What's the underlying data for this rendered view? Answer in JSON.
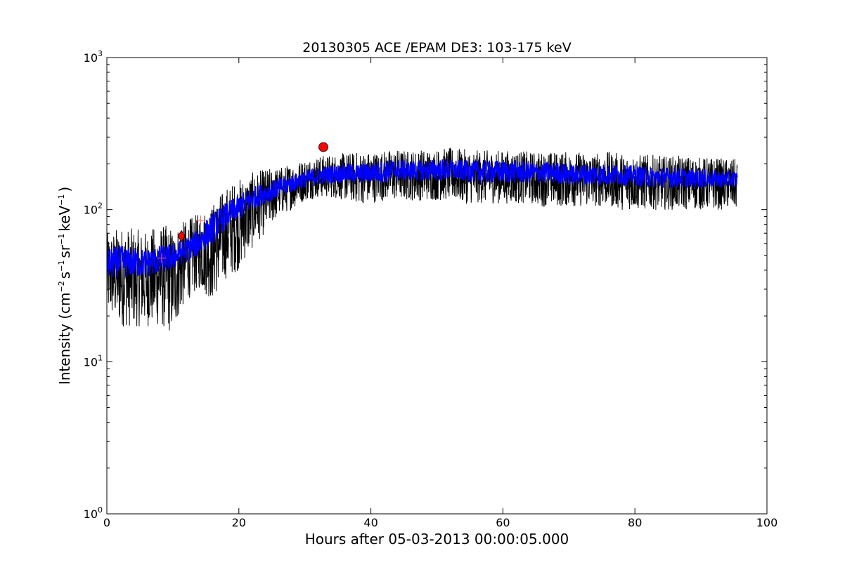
{
  "chart_data": {
    "type": "line",
    "title": "20130305 ACE /EPAM DE3: 103-175 keV",
    "xlabel": "Hours after 05-03-2013 00:00:05.000",
    "ylabel": {
      "prefix": "Intensity (cm",
      "sup1": "−2",
      "mid1": "s",
      "sup2": "−1",
      "mid2": "sr",
      "sup3": "−1",
      "mid3": "keV",
      "sup4": "−1",
      "suffix": ")"
    },
    "xlim": [
      0,
      100
    ],
    "ylim": [
      1,
      1000
    ],
    "yscale": "log",
    "grid": false,
    "x_ticks": [
      {
        "value": 0,
        "label": "0"
      },
      {
        "value": 20,
        "label": "20"
      },
      {
        "value": 40,
        "label": "40"
      },
      {
        "value": 60,
        "label": "60"
      },
      {
        "value": 80,
        "label": "80"
      },
      {
        "value": 100,
        "label": "100"
      }
    ],
    "y_ticks": [
      {
        "value": 1,
        "base": "10",
        "exp": "0"
      },
      {
        "value": 10,
        "base": "10",
        "exp": "1"
      },
      {
        "value": 100,
        "base": "10",
        "exp": "2"
      },
      {
        "value": 1000,
        "base": "10",
        "exp": "3"
      }
    ],
    "series": [
      {
        "color": "#000000",
        "style": "noisy-envelope",
        "x": [
          0,
          2,
          4,
          6,
          8,
          10,
          12,
          14,
          16,
          18,
          20,
          22,
          24,
          26,
          28,
          30,
          32,
          34,
          36,
          38,
          40,
          42,
          44,
          46,
          48,
          50,
          52,
          54,
          56,
          58,
          60,
          62,
          64,
          66,
          68,
          70,
          72,
          74,
          76,
          78,
          80,
          82,
          84,
          86,
          88,
          90,
          92,
          94,
          95.5
        ],
        "y_max": [
          70,
          78,
          75,
          72,
          80,
          78,
          85,
          95,
          110,
          140,
          160,
          175,
          185,
          190,
          200,
          215,
          225,
          230,
          235,
          240,
          240,
          245,
          250,
          245,
          250,
          250,
          255,
          250,
          245,
          245,
          245,
          245,
          240,
          240,
          240,
          240,
          240,
          235,
          240,
          235,
          230,
          230,
          225,
          225,
          225,
          220,
          220,
          215,
          215
        ],
        "y_min": [
          20,
          17,
          17,
          17,
          17,
          15,
          25,
          30,
          25,
          35,
          40,
          55,
          70,
          90,
          100,
          115,
          120,
          120,
          115,
          110,
          110,
          115,
          115,
          115,
          115,
          115,
          115,
          110,
          110,
          110,
          110,
          110,
          110,
          105,
          105,
          105,
          105,
          105,
          105,
          100,
          100,
          100,
          100,
          100,
          100,
          100,
          100,
          100,
          100
        ]
      },
      {
        "color": "#0000ff",
        "style": "noisy-envelope",
        "x": [
          0,
          2,
          4,
          6,
          8,
          10,
          12,
          14,
          16,
          18,
          20,
          22,
          24,
          26,
          28,
          30,
          32,
          34,
          36,
          38,
          40,
          42,
          44,
          46,
          48,
          50,
          52,
          54,
          56,
          58,
          60,
          62,
          64,
          66,
          68,
          70,
          72,
          74,
          76,
          78,
          80,
          82,
          84,
          86,
          88,
          90,
          92,
          94,
          95.5
        ],
        "y_max": [
          55,
          58,
          56,
          55,
          58,
          60,
          65,
          75,
          95,
          110,
          125,
          140,
          150,
          160,
          170,
          180,
          190,
          195,
          200,
          200,
          205,
          210,
          215,
          210,
          210,
          215,
          215,
          210,
          210,
          210,
          210,
          210,
          205,
          205,
          205,
          200,
          200,
          200,
          200,
          195,
          195,
          190,
          190,
          190,
          185,
          185,
          180,
          180,
          180
        ],
        "y_min": [
          35,
          36,
          36,
          36,
          38,
          40,
          45,
          50,
          60,
          75,
          85,
          100,
          110,
          120,
          130,
          140,
          145,
          150,
          150,
          150,
          150,
          150,
          155,
          155,
          155,
          155,
          155,
          155,
          150,
          150,
          150,
          150,
          150,
          150,
          150,
          145,
          145,
          145,
          145,
          145,
          145,
          140,
          140,
          140,
          140,
          140,
          140,
          140,
          140
        ]
      }
    ],
    "markers": [
      {
        "x": 8.3,
        "y": 48,
        "symbol": "plus",
        "color": "#ff5555"
      },
      {
        "x": 11.3,
        "y": 67,
        "symbol": "diamond",
        "color": "#ff0000"
      },
      {
        "x": 14.2,
        "y": 85,
        "symbol": "plus",
        "color": "#ff5555"
      },
      {
        "x": 32.8,
        "y": 258,
        "symbol": "circle",
        "color": "#ff0000"
      }
    ]
  }
}
